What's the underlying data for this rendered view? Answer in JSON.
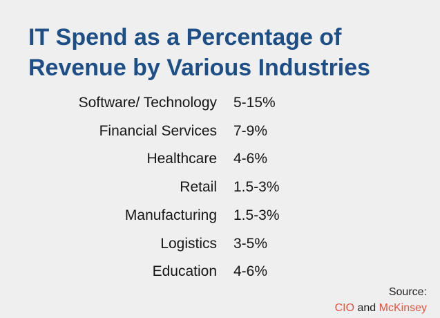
{
  "header": {
    "title_lines": [
      "IT Spend as a Percentage of",
      "Revenue by Various Industries"
    ]
  },
  "table": {
    "rows": [
      [
        "Software/ Technology",
        "5-15%"
      ],
      [
        "Financial Services",
        "7-9%"
      ],
      [
        "Healthcare",
        "4-6%"
      ],
      [
        "Retail",
        "1.5-3%"
      ],
      [
        "Manufacturing",
        "1.5-3%"
      ],
      [
        "Logistics",
        "3-5%"
      ],
      [
        "Education",
        "4-6%"
      ]
    ]
  },
  "source": {
    "label": "Source:",
    "names": [
      "CIO",
      "and",
      "McKinsey"
    ]
  }
}
